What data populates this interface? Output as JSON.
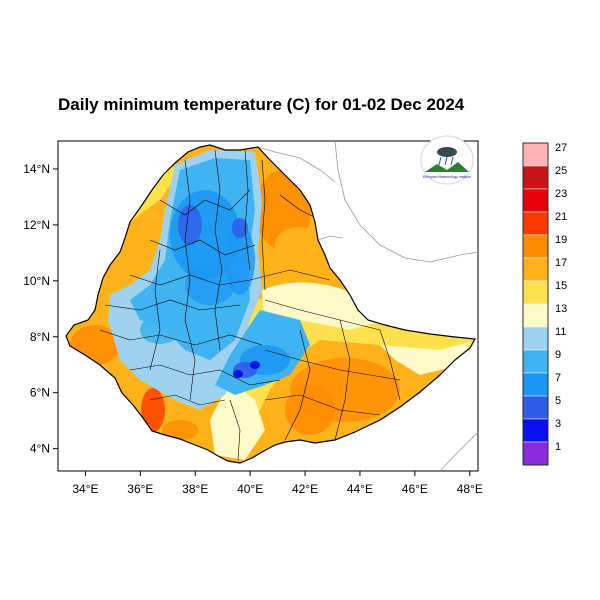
{
  "map": {
    "title": "Daily minimum temperature (C) for 01-02 Dec 2024",
    "lon_ticks": [
      "34°E",
      "36°E",
      "38°E",
      "40°E",
      "42°E",
      "44°E",
      "46°E",
      "48°E"
    ],
    "lat_ticks": [
      "14°N",
      "12°N",
      "10°N",
      "8°N",
      "6°N",
      "4°N"
    ],
    "lon_range": [
      33,
      48.3
    ],
    "lat_range": [
      3.2,
      15
    ],
    "logo": {
      "name": "agency-logo-icon",
      "text": "Ethiopian Meteorology Institute"
    }
  },
  "colorbar": {
    "labels": [
      "27",
      "25",
      "23",
      "21",
      "19",
      "17",
      "15",
      "13",
      "11",
      "9",
      "7",
      "5",
      "3",
      "1"
    ],
    "colors": [
      "#ffb3b8",
      "#c8141a",
      "#e8000a",
      "#ff3a00",
      "#ff8c00",
      "#ffb319",
      "#ffe14d",
      "#fffac8",
      "#9fd2ef",
      "#3fb4f0",
      "#1a96f5",
      "#2f5de8",
      "#0a10f0",
      "#8a2be2"
    ]
  }
}
